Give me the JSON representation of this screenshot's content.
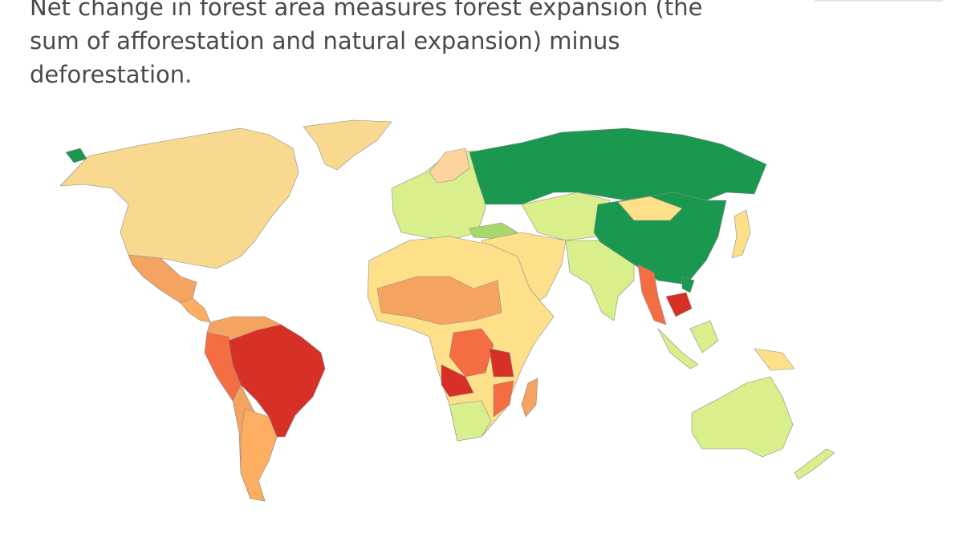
{
  "description": "Net change in forest area measures forest expansion (the sum of afforestation and natural expansion) minus deforestation."
}
